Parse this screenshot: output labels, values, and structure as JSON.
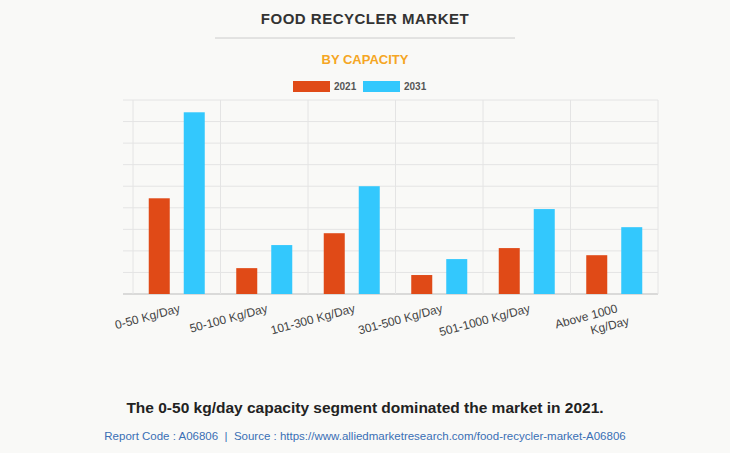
{
  "chart_data": {
    "type": "bar",
    "title": "FOOD RECYCLER MARKET",
    "subtitle": "BY CAPACITY",
    "categories": [
      "0-50 Kg/Day",
      "50-100 Kg/Day",
      "101-300 Kg/Day",
      "301-500 Kg/Day",
      "501-1000 Kg/Day",
      "Above 1000 Kg/Day"
    ],
    "series": [
      {
        "name": "2021",
        "color": "#e04a17",
        "values": [
          4.44,
          1.2,
          2.82,
          0.88,
          2.13,
          1.8
        ]
      },
      {
        "name": "2031",
        "color": "#33c8fd",
        "values": [
          8.43,
          2.27,
          5.0,
          1.62,
          3.94,
          3.1
        ]
      }
    ],
    "ylim": [
      0,
      9
    ],
    "yticks": [
      0,
      1,
      2,
      3,
      4,
      5,
      6,
      7,
      8,
      9
    ],
    "grid": true,
    "tick_labels": "x",
    "legend": "top",
    "annotations": [
      "The 0-50 kg/day capacity segment dominated the market in 2021.",
      "Report Code : A06806  |  Source : https://www.alliedmarketresearch.com/food-recycler-market-A06806"
    ]
  }
}
